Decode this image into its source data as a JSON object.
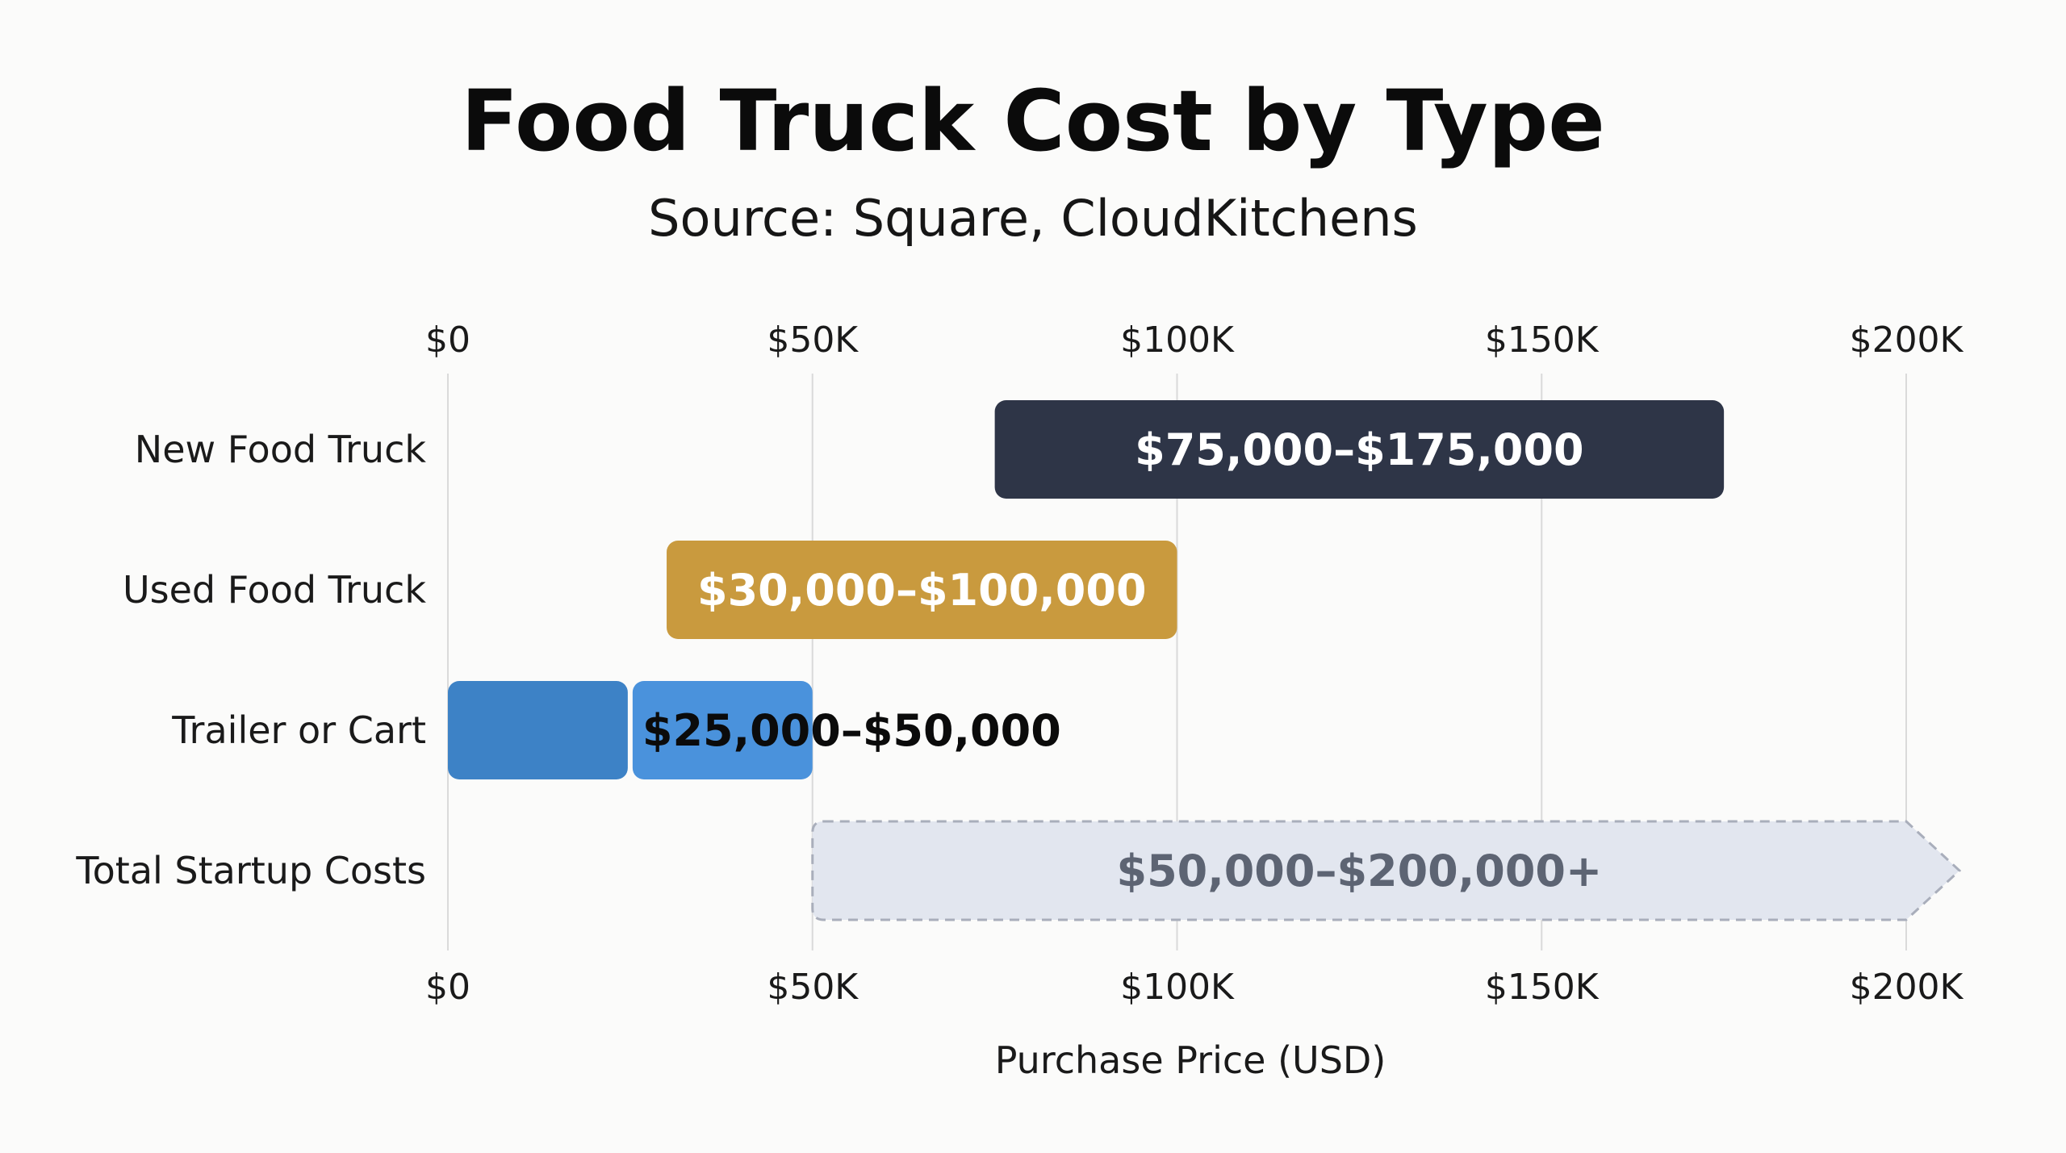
{
  "chart_data": {
    "type": "bar",
    "orientation": "horizontal",
    "style": "floating-range",
    "title": "Food Truck Cost by Type",
    "subtitle": "Source: Square, CloudKitchens",
    "xlabel": "Purchase Price (USD)",
    "xlim": [
      0,
      200000
    ],
    "xticks": [
      0,
      50000,
      100000,
      150000,
      200000
    ],
    "xtick_labels": [
      "$0",
      "$50K",
      "$100K",
      "$150K",
      "$200K"
    ],
    "grid": true,
    "categories": [
      "New Food Truck",
      "Used Food Truck",
      "Trailer or Cart",
      "Total Startup Costs"
    ],
    "ranges": [
      {
        "category": "New Food Truck",
        "low": 75000,
        "high": 175000,
        "label": "$75,000–$175,000",
        "color": "#2e3547",
        "label_color": "#ffffff"
      },
      {
        "category": "Used Food Truck",
        "low": 30000,
        "high": 100000,
        "label": "$30,000–$100,000",
        "color": "#c99a3e",
        "label_color": "#ffffff"
      },
      {
        "category": "Trailer or Cart",
        "low": 0,
        "high": 50000,
        "split_at": 25000,
        "label": "$25,000–$50,000",
        "color": "#3d82c6",
        "color_secondary": "#4a92dc",
        "label_color": "#0b0b0b"
      },
      {
        "category": "Total Startup Costs",
        "low": 50000,
        "high": 200000,
        "open_ended": true,
        "label": "$50,000–$200,000+",
        "color": "#e2e6ef",
        "border_color": "#a9aebb",
        "label_color": "#5d6473"
      }
    ]
  }
}
